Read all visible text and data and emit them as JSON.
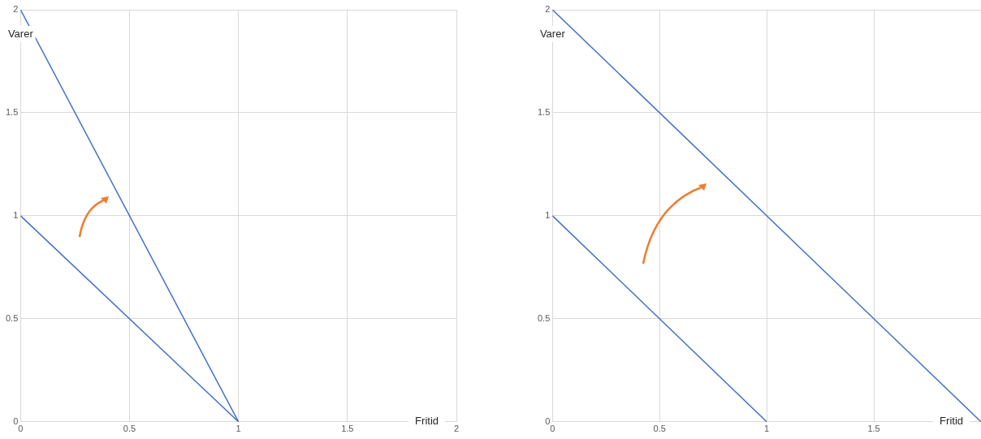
{
  "chart_data": [
    {
      "type": "line",
      "xlabel": "Fritid",
      "ylabel": "Varer",
      "xlim": [
        0,
        2
      ],
      "ylim": [
        0,
        2
      ],
      "xticks": [
        0,
        0.5,
        1,
        1.5,
        2
      ],
      "yticks": [
        0,
        0.5,
        1,
        1.5,
        2
      ],
      "grid": true,
      "series": [
        {
          "x": [
            0,
            1
          ],
          "values": [
            2,
            0
          ],
          "color": "#4472c4"
        },
        {
          "x": [
            0,
            1
          ],
          "values": [
            1,
            0
          ],
          "color": "#4472c4"
        }
      ]
    },
    {
      "type": "line",
      "xlabel": "Fritid",
      "ylabel": "Varer",
      "xlim": [
        0,
        2
      ],
      "ylim": [
        0,
        2
      ],
      "xticks": [
        0,
        0.5,
        1,
        1.5
      ],
      "yticks": [
        0,
        0.5,
        1,
        1.5,
        2
      ],
      "grid": true,
      "series": [
        {
          "x": [
            0,
            1
          ],
          "values": [
            1,
            0
          ],
          "color": "#4472c4"
        },
        {
          "x": [
            0,
            2
          ],
          "values": [
            2,
            0
          ],
          "color": "#4472c4"
        }
      ]
    }
  ]
}
